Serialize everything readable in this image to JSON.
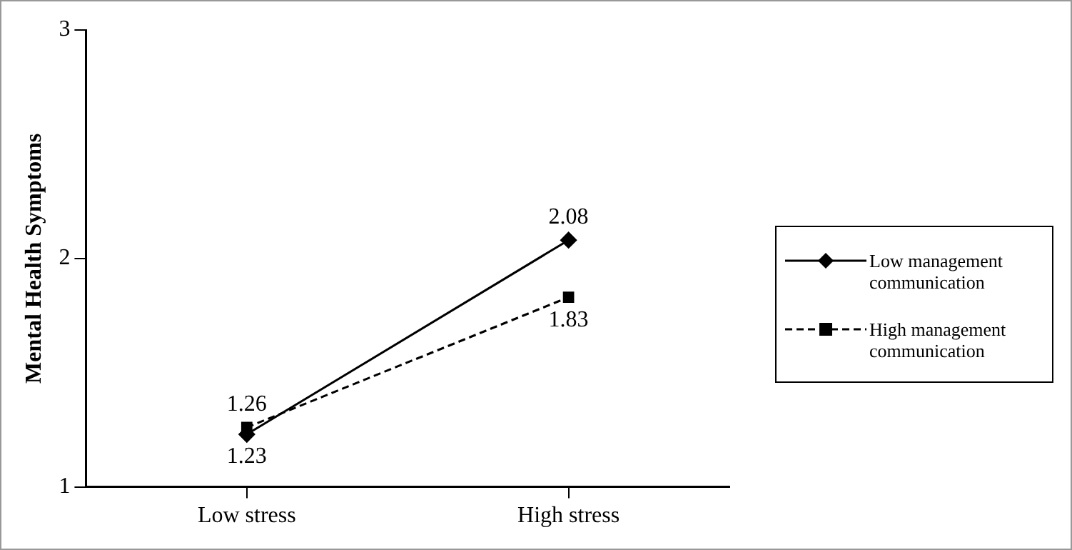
{
  "chart_data": {
    "type": "line",
    "ylabel": "Mental Health Symptoms",
    "categories": [
      "Low stress",
      "High stress"
    ],
    "series": [
      {
        "name": "Low management communication",
        "color": "#000000",
        "values": [
          1.23,
          2.08
        ],
        "marker": "diamond",
        "line_style": "solid"
      },
      {
        "name": "High management communication",
        "color": "#000000",
        "values": [
          1.26,
          1.83
        ],
        "marker": "square",
        "line_style": "dashed"
      }
    ],
    "ylim": [
      1,
      3
    ],
    "yticks": [
      1,
      2,
      3
    ],
    "grid": false,
    "legend": "right",
    "data_labels": true
  }
}
